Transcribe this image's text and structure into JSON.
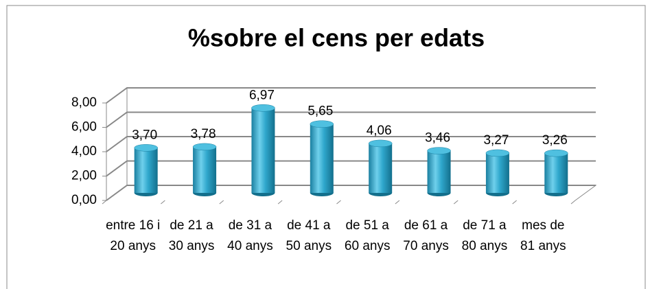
{
  "chart_data": {
    "type": "bar",
    "title": "%sobre el cens per edats",
    "categories": [
      "entre 16 i 20 anys",
      "de 21 a 30 anys",
      "de 31 a 40 anys",
      "de 41 a 50 anys",
      "de 51 a 60 anys",
      "de 61 a 70 anys",
      "de 71 a 80 anys",
      "mes de 81 anys"
    ],
    "values": [
      3.7,
      3.78,
      6.97,
      5.65,
      4.06,
      3.46,
      3.27,
      3.26
    ],
    "value_labels": [
      "3,70",
      "3,78",
      "6,97",
      "5,65",
      "4,06",
      "3,46",
      "3,27",
      "3,26"
    ],
    "color": "#2a9fc4",
    "ylim": [
      0,
      8
    ],
    "yticks": [
      {
        "value": 0,
        "label": "0,00"
      },
      {
        "value": 2,
        "label": "2,00"
      },
      {
        "value": 4,
        "label": "4,00"
      },
      {
        "value": 6,
        "label": "6,00"
      },
      {
        "value": 8,
        "label": "8,00"
      }
    ],
    "grid": true
  }
}
